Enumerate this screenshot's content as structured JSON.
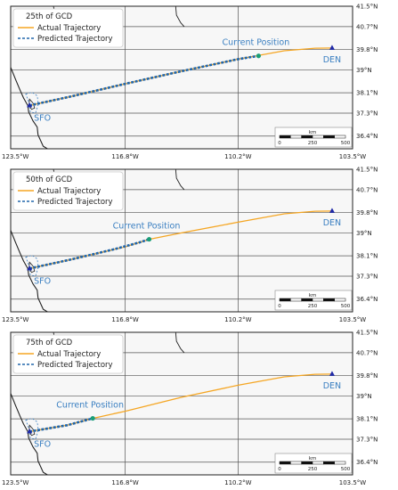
{
  "colors": {
    "actual": "#f5a623",
    "predicted": "#2166ac",
    "label": "#3a7fc1",
    "current": "#1a9e77",
    "airport": "#1f2aa8",
    "map_bg": "#f7f7f7",
    "grid": "#555555",
    "coast": "#222222"
  },
  "chart_data": [
    {
      "type": "line",
      "title": "25th of GCD",
      "x_ticks": [
        "123.5°W",
        "116.8°W",
        "110.2°W",
        "103.5°W"
      ],
      "x_tick_values": [
        -123.5,
        -116.8,
        -110.2,
        -103.5
      ],
      "y_ticks": [
        "41.5°N",
        "40.7°N",
        "39.8°N",
        "39°N",
        "38.1°N",
        "37.3°N",
        "36.4°N"
      ],
      "y_tick_values": [
        41.5,
        40.7,
        39.8,
        39.0,
        38.1,
        37.3,
        36.4
      ],
      "xlim": [
        -123.5,
        -103.5
      ],
      "ylim": [
        35.9,
        41.5
      ],
      "legend": {
        "position": "top-left",
        "entries": [
          "Actual Trajectory",
          "Predicted Trajectory"
        ]
      },
      "series": [
        {
          "name": "Actual Trajectory",
          "style": "solid",
          "x": [
            -122.4,
            -120.0,
            -116.8,
            -113.5,
            -110.2,
            -107.5,
            -105.7,
            -104.7
          ],
          "y": [
            37.6,
            37.95,
            38.45,
            38.95,
            39.42,
            39.75,
            39.85,
            39.86
          ]
        },
        {
          "name": "Predicted Trajectory",
          "style": "dashed",
          "x": [
            -122.4,
            -120.0,
            -116.8,
            -113.5,
            -110.2,
            -109.0
          ],
          "y": [
            37.6,
            37.95,
            38.45,
            38.95,
            39.42,
            39.55
          ]
        }
      ],
      "current_position": {
        "label": "Current Position",
        "x": -109.0,
        "y": 39.55
      },
      "airports": [
        {
          "label": "SFO",
          "x": -122.4,
          "y": 37.6
        },
        {
          "label": "DEN",
          "x": -104.7,
          "y": 39.86
        }
      ],
      "scale_bar": {
        "unit": "km",
        "ticks": [
          "0",
          "250",
          "500"
        ]
      }
    },
    {
      "type": "line",
      "title": "50th of GCD",
      "x_ticks": [
        "123.5°W",
        "116.8°W",
        "110.2°W",
        "103.5°W"
      ],
      "x_tick_values": [
        -123.5,
        -116.8,
        -110.2,
        -103.5
      ],
      "y_ticks": [
        "41.5°N",
        "40.7°N",
        "39.8°N",
        "39°N",
        "38.1°N",
        "37.3°N",
        "36.4°N"
      ],
      "y_tick_values": [
        41.5,
        40.7,
        39.8,
        39.0,
        38.1,
        37.3,
        36.4
      ],
      "xlim": [
        -123.5,
        -103.5
      ],
      "ylim": [
        35.9,
        41.5
      ],
      "legend": {
        "position": "top-left",
        "entries": [
          "Actual Trajectory",
          "Predicted Trajectory"
        ]
      },
      "series": [
        {
          "name": "Actual Trajectory",
          "style": "solid",
          "x": [
            -122.4,
            -120.0,
            -116.8,
            -115.4,
            -113.5,
            -110.2,
            -107.5,
            -105.7,
            -104.7
          ],
          "y": [
            37.6,
            37.95,
            38.45,
            38.75,
            39.0,
            39.42,
            39.75,
            39.85,
            39.86
          ]
        },
        {
          "name": "Predicted Trajectory",
          "style": "dashed",
          "x": [
            -122.4,
            -120.0,
            -117.5,
            -116.0,
            -115.4
          ],
          "y": [
            37.6,
            37.95,
            38.35,
            38.62,
            38.75
          ]
        }
      ],
      "current_position": {
        "label": "Current Position",
        "x": -115.4,
        "y": 38.75
      },
      "airports": [
        {
          "label": "SFO",
          "x": -122.4,
          "y": 37.6
        },
        {
          "label": "DEN",
          "x": -104.7,
          "y": 39.86
        }
      ],
      "scale_bar": {
        "unit": "km",
        "ticks": [
          "0",
          "250",
          "500"
        ]
      }
    },
    {
      "type": "line",
      "title": "75th of GCD",
      "x_ticks": [
        "123.5°W",
        "116.8°W",
        "110.2°W",
        "103.5°W"
      ],
      "x_tick_values": [
        -123.5,
        -116.8,
        -110.2,
        -103.5
      ],
      "y_ticks": [
        "41.5°N",
        "40.7°N",
        "39.8°N",
        "39°N",
        "38.1°N",
        "37.3°N",
        "36.4°N"
      ],
      "y_tick_values": [
        41.5,
        40.7,
        39.8,
        39.0,
        38.1,
        37.3,
        36.4
      ],
      "xlim": [
        -123.5,
        -103.5
      ],
      "ylim": [
        35.9,
        41.5
      ],
      "legend": {
        "position": "top-left",
        "entries": [
          "Actual Trajectory",
          "Predicted Trajectory"
        ]
      },
      "series": [
        {
          "name": "Actual Trajectory",
          "style": "solid",
          "x": [
            -122.4,
            -120.2,
            -118.7,
            -116.8,
            -113.5,
            -110.2,
            -107.5,
            -105.7,
            -104.7
          ],
          "y": [
            37.6,
            37.85,
            38.12,
            38.4,
            38.95,
            39.42,
            39.75,
            39.85,
            39.86
          ]
        },
        {
          "name": "Predicted Trajectory",
          "style": "dashed",
          "x": [
            -122.4,
            -120.2,
            -118.7
          ],
          "y": [
            37.6,
            37.85,
            38.12
          ]
        }
      ],
      "current_position": {
        "label": "Current Position",
        "x": -118.7,
        "y": 38.12
      },
      "airports": [
        {
          "label": "SFO",
          "x": -122.4,
          "y": 37.6
        },
        {
          "label": "DEN",
          "x": -104.7,
          "y": 39.86
        }
      ],
      "scale_bar": {
        "unit": "km",
        "ticks": [
          "0",
          "250",
          "500"
        ]
      }
    }
  ]
}
